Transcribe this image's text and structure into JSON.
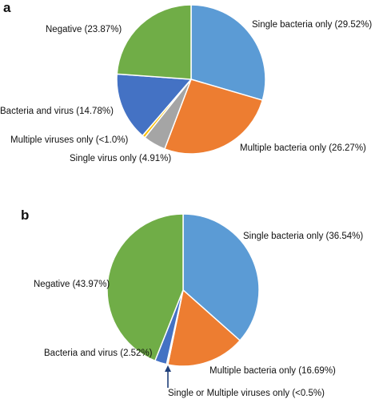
{
  "chart_data": [
    {
      "type": "pie",
      "panel": "a",
      "slices": [
        {
          "label": "Single bacteria only",
          "value": 29.52,
          "display": "Single bacteria only (29.52%)",
          "color": "#5B9BD5"
        },
        {
          "label": "Multiple bacteria only",
          "value": 26.27,
          "display": "Multiple bacteria only (26.27%)",
          "color": "#ED7D31"
        },
        {
          "label": "Single virus only",
          "value": 4.91,
          "display": "Single virus only (4.91%)",
          "color": "#A5A5A5"
        },
        {
          "label": "Multiple viruses only",
          "value": 0.65,
          "display": "Multiple viruses only (<1.0%)",
          "color": "#FFC000"
        },
        {
          "label": "Bacteria and virus",
          "value": 14.78,
          "display": "Bacteria and virus (14.78%)",
          "color": "#4472C4"
        },
        {
          "label": "Negative",
          "value": 23.87,
          "display": "Negative (23.87%)",
          "color": "#70AD47"
        }
      ]
    },
    {
      "type": "pie",
      "panel": "b",
      "slices": [
        {
          "label": "Single bacteria only",
          "value": 36.54,
          "display": "Single bacteria only (36.54%)",
          "color": "#5B9BD5"
        },
        {
          "label": "Multiple bacteria only",
          "value": 16.69,
          "display": "Multiple bacteria only (16.69%)",
          "color": "#ED7D31"
        },
        {
          "label": "Single or Multiple viruses only",
          "value": 0.28,
          "display": "Single or Multiple viruses only (<0.5%)",
          "color": "#FFC000"
        },
        {
          "label": "Bacteria and virus",
          "value": 2.52,
          "display": "Bacteria and virus (2.52%)",
          "color": "#4472C4"
        },
        {
          "label": "Negative",
          "value": 43.97,
          "display": "Negative (43.97%)",
          "color": "#70AD47"
        }
      ]
    }
  ]
}
